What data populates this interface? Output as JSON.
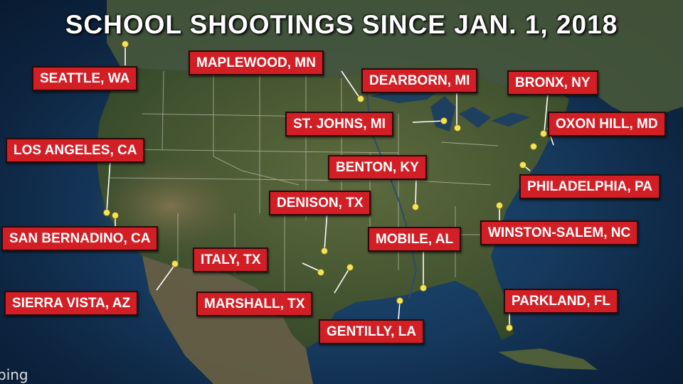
{
  "title": "SCHOOL SHOOTINGS SINCE JAN. 1, 2018",
  "attribution": "bing",
  "marker_color": "#f4e35a",
  "label_color": "#d21f26",
  "locations": [
    {
      "id": "seattle",
      "label": "SEATTLE, WA"
    },
    {
      "id": "maplewood",
      "label": "MAPLEWOOD, MN"
    },
    {
      "id": "dearborn",
      "label": "DEARBORN, MI"
    },
    {
      "id": "bronx",
      "label": "BRONX, NY"
    },
    {
      "id": "st-johns",
      "label": "ST. JOHNS, MI"
    },
    {
      "id": "oxon-hill",
      "label": "OXON HILL, MD"
    },
    {
      "id": "los-angeles",
      "label": "LOS ANGELES, CA"
    },
    {
      "id": "benton",
      "label": "BENTON, KY"
    },
    {
      "id": "philadelphia",
      "label": "PHILADELPHIA, PA"
    },
    {
      "id": "denison",
      "label": "DENISON, TX"
    },
    {
      "id": "san-bernadino",
      "label": "SAN BERNADINO, CA"
    },
    {
      "id": "mobile",
      "label": "MOBILE, AL"
    },
    {
      "id": "winston-salem",
      "label": "WINSTON-SALEM, NC"
    },
    {
      "id": "italy",
      "label": "ITALY, TX"
    },
    {
      "id": "sierra-vista",
      "label": "SIERRA VISTA, AZ"
    },
    {
      "id": "marshall",
      "label": "MARSHALL, TX"
    },
    {
      "id": "parkland",
      "label": "PARKLAND, FL"
    },
    {
      "id": "gentilly",
      "label": "GENTILLY, LA"
    }
  ]
}
